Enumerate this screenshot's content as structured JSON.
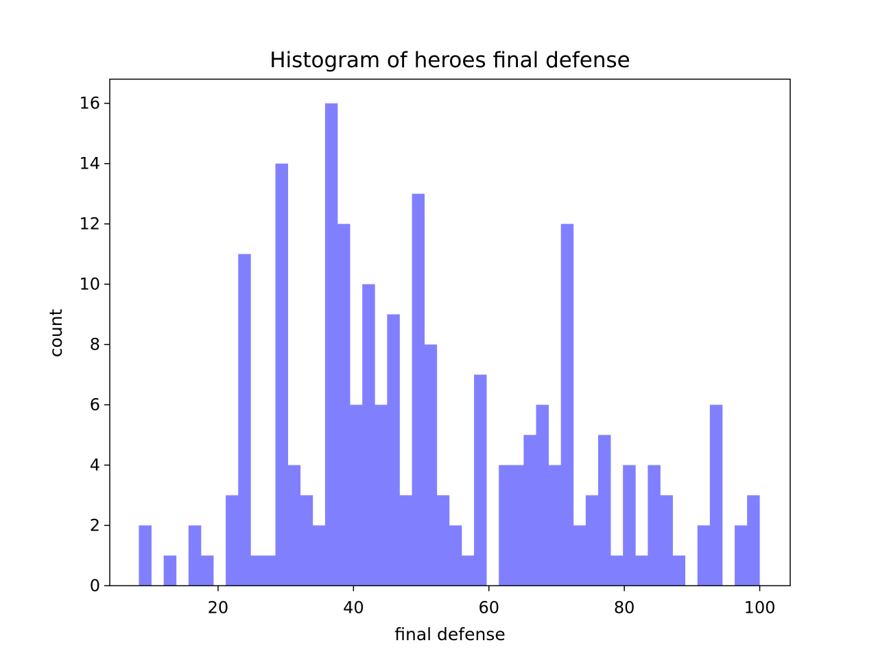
{
  "chart_data": {
    "type": "bar",
    "title": "Histogram of heroes final defense",
    "xlabel": "final defense",
    "ylabel": "count",
    "xlim": [
      4,
      104.5
    ],
    "ylim": [
      0,
      16.8
    ],
    "xticks": [
      20,
      40,
      60,
      80,
      100
    ],
    "yticks": [
      0,
      2,
      4,
      6,
      8,
      10,
      12,
      14,
      16
    ],
    "grid": false,
    "bin_start": 8.3,
    "bin_width": 1.8333,
    "counts": [
      2,
      0,
      1,
      0,
      2,
      1,
      0,
      3,
      11,
      1,
      1,
      14,
      4,
      3,
      2,
      16,
      12,
      6,
      10,
      6,
      9,
      3,
      13,
      8,
      3,
      2,
      1,
      7,
      0,
      4,
      4,
      5,
      6,
      4,
      12,
      2,
      3,
      5,
      1,
      4,
      1,
      4,
      3,
      1,
      0,
      2,
      6,
      0,
      2,
      3
    ],
    "bar_color": "#8080ff"
  }
}
